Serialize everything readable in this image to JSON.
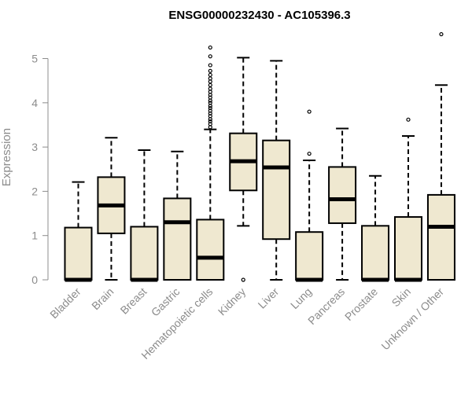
{
  "chart_data": {
    "type": "boxplot",
    "title": "ENSG00000232430 - AC105396.3",
    "xlabel": "",
    "ylabel": "Expression",
    "ylim": [
      0,
      5.6
    ],
    "yticks": [
      0,
      1,
      2,
      3,
      4,
      5
    ],
    "box_fill": "#efe8d0",
    "box_stroke": "#000000",
    "axis_color": "#8c8c8c",
    "categories": [
      "Bladder",
      "Brain",
      "Breast",
      "Gastric",
      "Hematopoietic cells",
      "Kidney",
      "Liver",
      "Lung",
      "Pancreas",
      "Prostate",
      "Skin",
      "Unknown / Other"
    ],
    "boxes": [
      {
        "category": "Bladder",
        "whisker_low": 0,
        "q1": 0,
        "median": 0,
        "q3": 1.18,
        "whisker_high": 2.21,
        "outliers": []
      },
      {
        "category": "Brain",
        "whisker_low": 0,
        "q1": 1.05,
        "median": 1.68,
        "q3": 2.32,
        "whisker_high": 3.21,
        "outliers": []
      },
      {
        "category": "Breast",
        "whisker_low": 0,
        "q1": 0,
        "median": 0,
        "q3": 1.2,
        "whisker_high": 2.93,
        "outliers": []
      },
      {
        "category": "Gastric",
        "whisker_low": 0,
        "q1": 0,
        "median": 1.3,
        "q3": 1.84,
        "whisker_high": 2.9,
        "outliers": []
      },
      {
        "category": "Hematopoietic cells",
        "whisker_low": 0,
        "q1": 0,
        "median": 0.5,
        "q3": 1.36,
        "whisker_high": 3.4,
        "outliers": [
          3.45,
          3.52,
          3.58,
          3.63,
          3.7,
          3.76,
          3.82,
          3.88,
          3.93,
          4.0,
          4.05,
          4.12,
          4.18,
          4.25,
          4.32,
          4.4,
          4.48,
          4.55,
          4.63,
          4.72,
          4.85,
          5.05,
          5.25
        ]
      },
      {
        "category": "Kidney",
        "whisker_low": 1.22,
        "q1": 2.02,
        "median": 2.68,
        "q3": 3.31,
        "whisker_high": 5.02,
        "outliers": [
          0
        ]
      },
      {
        "category": "Liver",
        "whisker_low": 0,
        "q1": 0.92,
        "median": 2.54,
        "q3": 3.15,
        "whisker_high": 4.95,
        "outliers": []
      },
      {
        "category": "Lung",
        "whisker_low": 0,
        "q1": 0,
        "median": 0,
        "q3": 1.08,
        "whisker_high": 2.7,
        "outliers": [
          2.85,
          3.8
        ]
      },
      {
        "category": "Pancreas",
        "whisker_low": 0,
        "q1": 1.28,
        "median": 1.82,
        "q3": 2.55,
        "whisker_high": 3.42,
        "outliers": []
      },
      {
        "category": "Prostate",
        "whisker_low": 0,
        "q1": 0,
        "median": 0,
        "q3": 1.22,
        "whisker_high": 2.35,
        "outliers": []
      },
      {
        "category": "Skin",
        "whisker_low": 0,
        "q1": 0,
        "median": 0,
        "q3": 1.42,
        "whisker_high": 3.25,
        "outliers": [
          3.62
        ]
      },
      {
        "category": "Unknown / Other",
        "whisker_low": 0,
        "q1": 0,
        "median": 1.2,
        "q3": 1.92,
        "whisker_high": 4.4,
        "outliers": [
          5.55
        ]
      }
    ]
  }
}
